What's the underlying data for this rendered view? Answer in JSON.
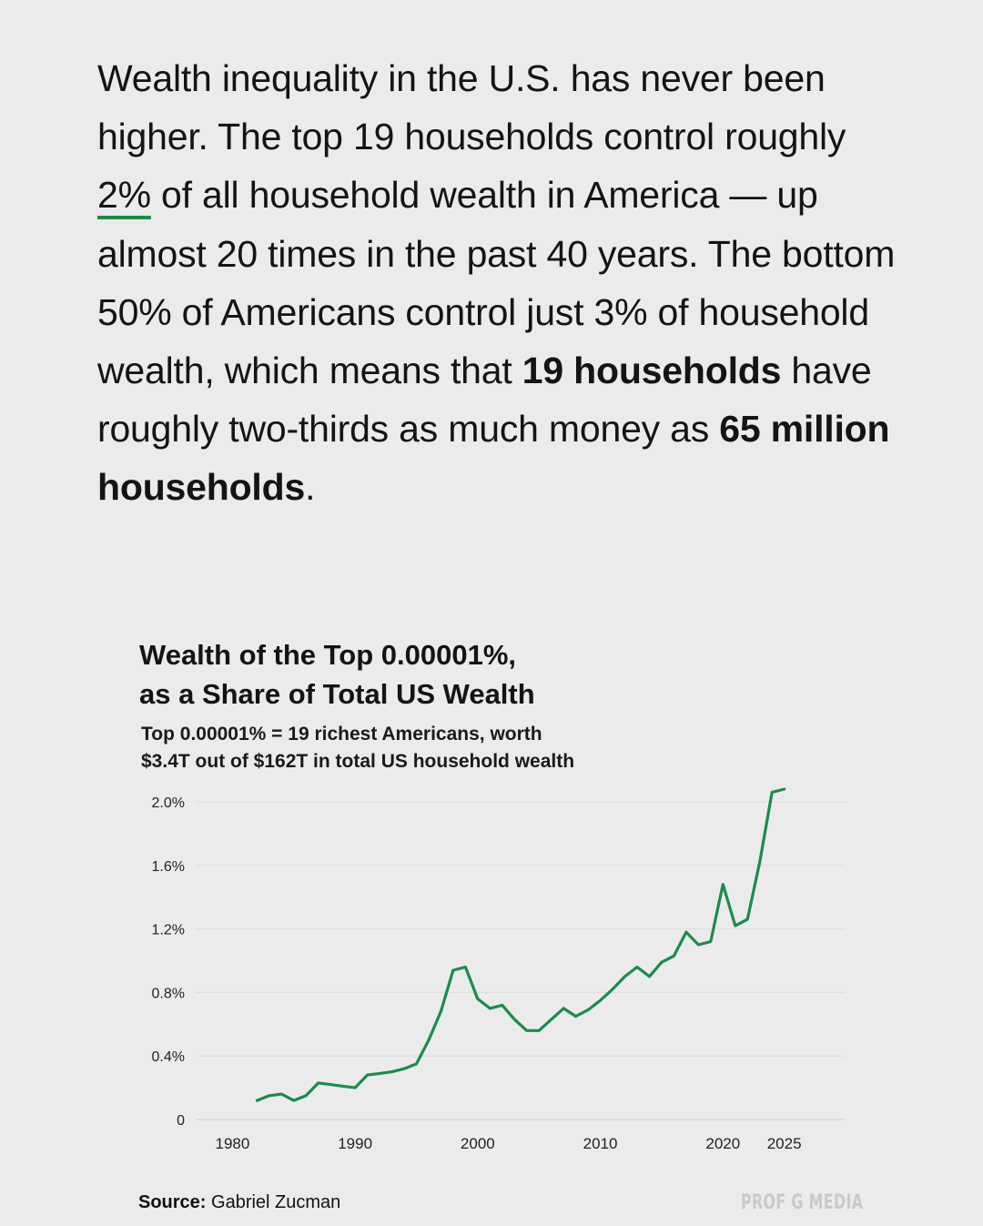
{
  "intro": {
    "s1": "Wealth inequality in the U.S. has never been higher. The top 19 households control roughly ",
    "highlight": "2%",
    "s2": " of all household wealth in America — up almost 20 times in the past 40 years. The bottom 50% of Americans control just 3% of household wealth, which means that ",
    "bold1": "19 households",
    "s3": " have roughly two-thirds as much money as ",
    "bold2": "65 million households",
    "s4": "."
  },
  "chart_data": {
    "type": "line",
    "title_line1": "Wealth of the Top 0.00001%,",
    "title_line2": "as a Share of Total US Wealth",
    "subtitle_line1": "Top 0.00001% = 19 richest Americans, worth",
    "subtitle_line2": "$3.4T out of $162T in total US household wealth",
    "xlabel": "",
    "ylabel": "",
    "xlim": [
      1977,
      2030
    ],
    "ylim": [
      0,
      2.0
    ],
    "x_ticks": [
      1980,
      1990,
      2000,
      2010,
      2020,
      2025
    ],
    "y_ticks": [
      0,
      0.4,
      0.8,
      1.2,
      1.6,
      2.0
    ],
    "y_tick_labels": [
      "0",
      "0.4%",
      "0.8%",
      "1.2%",
      "1.6%",
      "2.0%"
    ],
    "grid": true,
    "color": "#1e8a4c",
    "series": [
      {
        "x": [
          1982,
          1983,
          1984,
          1985,
          1986,
          1987,
          1988,
          1989,
          1990,
          1991,
          1992,
          1993,
          1994,
          1995,
          1996,
          1997,
          1998,
          1999,
          2000,
          2001,
          2002,
          2003,
          2004,
          2005,
          2006,
          2007,
          2008,
          2009,
          2010,
          2011,
          2012,
          2013,
          2014,
          2015,
          2016,
          2017,
          2018,
          2019,
          2020,
          2021,
          2022,
          2023,
          2024,
          2025
        ],
        "y": [
          0.12,
          0.15,
          0.16,
          0.12,
          0.15,
          0.23,
          0.22,
          0.21,
          0.2,
          0.28,
          0.29,
          0.3,
          0.32,
          0.35,
          0.5,
          0.68,
          0.94,
          0.96,
          0.76,
          0.7,
          0.72,
          0.63,
          0.56,
          0.56,
          0.63,
          0.7,
          0.65,
          0.69,
          0.75,
          0.82,
          0.9,
          0.96,
          0.9,
          0.99,
          1.03,
          1.18,
          1.1,
          1.12,
          1.48,
          1.22,
          1.26,
          1.62,
          2.06,
          2.08
        ]
      }
    ]
  },
  "footer": {
    "source_label": "Source:",
    "source_value": " Gabriel Zucman",
    "brand": "PROF G MEDIA"
  }
}
